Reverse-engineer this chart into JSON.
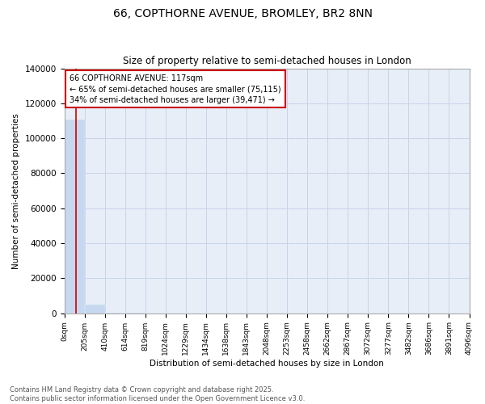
{
  "title": "66, COPTHORNE AVENUE, BROMLEY, BR2 8NN",
  "subtitle": "Size of property relative to semi-detached houses in London",
  "xlabel": "Distribution of semi-detached houses by size in London",
  "ylabel": "Number of semi-detached properties",
  "property_size": 117,
  "property_label": "66 COPTHORNE AVENUE: 117sqm",
  "pct_smaller": 65,
  "pct_larger": 34,
  "n_smaller": 75115,
  "n_larger": 39471,
  "annotation_box_color": "#cc0000",
  "bar_color": "#c5d8ef",
  "line_color": "#cc0000",
  "ylim": [
    0,
    140000
  ],
  "bin_width": 205,
  "bin_edges": [
    0,
    205,
    410,
    614,
    819,
    1024,
    1229,
    1434,
    1638,
    1843,
    2048,
    2253,
    2458,
    2662,
    2867,
    3072,
    3277,
    3482,
    3686,
    3891,
    4096
  ],
  "bin_labels": [
    "0sqm",
    "205sqm",
    "410sqm",
    "614sqm",
    "819sqm",
    "1024sqm",
    "1229sqm",
    "1434sqm",
    "1638sqm",
    "1843sqm",
    "2048sqm",
    "2253sqm",
    "2458sqm",
    "2662sqm",
    "2867sqm",
    "3072sqm",
    "3277sqm",
    "3482sqm",
    "3686sqm",
    "3891sqm",
    "4096sqm"
  ],
  "bar_heights": [
    110500,
    4800,
    200,
    80,
    40,
    20,
    15,
    10,
    8,
    6,
    5,
    4,
    3,
    3,
    2,
    2,
    2,
    2,
    2,
    2
  ],
  "yticks": [
    0,
    20000,
    40000,
    60000,
    80000,
    100000,
    120000,
    140000
  ],
  "footer_line1": "Contains HM Land Registry data © Crown copyright and database right 2025.",
  "footer_line2": "Contains public sector information licensed under the Open Government Licence v3.0.",
  "background_color": "#ffffff",
  "plot_bg_color": "#e8eef8",
  "grid_color": "#c8d4e8"
}
